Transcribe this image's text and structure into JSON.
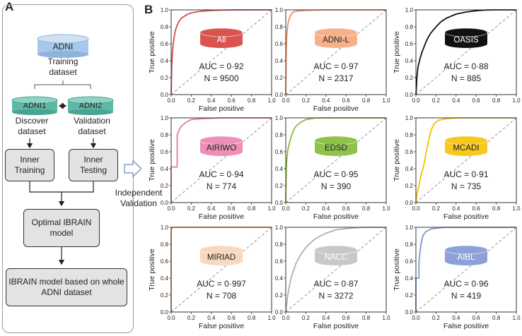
{
  "panel_a_label": "A",
  "panel_b_label": "B",
  "flowchart": {
    "adni": "ADNI",
    "training_dataset": "Training dataset",
    "adni1": "ADNI1",
    "adni2": "ADNI2",
    "discover_dataset": "Discover dataset",
    "validation_dataset": "Validation dataset",
    "inner_training": "Inner Training",
    "inner_testing": "Inner Testing",
    "optimal_model": "Optimal IBRAIN model",
    "final_model": "IBRAIN model based on whole ADNI dataset",
    "independent_validation": "Independent Validation",
    "colors": {
      "db_blue": "#a6c8ea",
      "db_teal": "#5fb8a6"
    }
  },
  "chart_data": [
    {
      "type": "line",
      "name": "All",
      "auc_text": "AUC = 0·92",
      "n_text": "N = 9500",
      "color": "#cf4c4c",
      "label_color": "#d9534f",
      "label_text_color": "#ffffff",
      "xlabel": "False positive",
      "ylabel": "True positive",
      "xlim": [
        0,
        1
      ],
      "ylim": [
        0,
        1
      ],
      "xticks": [
        "0.0",
        "0.2",
        "0.4",
        "0.6",
        "0.8",
        "1.0"
      ],
      "yticks": [
        "0.0",
        "0.2",
        "0.4",
        "0.6",
        "0.8",
        "1.0"
      ],
      "x": [
        0,
        0.005,
        0.01,
        0.02,
        0.04,
        0.06,
        0.08,
        0.1,
        0.15,
        0.2,
        0.3,
        0.4,
        0.5,
        0.6,
        0.8,
        1.0
      ],
      "y": [
        0,
        0.3,
        0.45,
        0.6,
        0.75,
        0.82,
        0.87,
        0.9,
        0.94,
        0.965,
        0.985,
        0.993,
        0.997,
        0.999,
        1.0,
        1.0
      ]
    },
    {
      "type": "line",
      "name": "ADNI-L",
      "auc_text": "AUC = 0·97",
      "n_text": "N = 2317",
      "color": "#f08a5d",
      "label_color": "#f7b08a",
      "label_text_color": "#222222",
      "xlabel": "False positive",
      "ylabel": "",
      "xlim": [
        0,
        1
      ],
      "ylim": [
        0,
        1
      ],
      "xticks": [
        "0.0",
        "0.2",
        "0.4",
        "0.6",
        "0.8",
        "1.0"
      ],
      "yticks": [
        "0.0",
        "0.2",
        "0.4",
        "0.6",
        "0.8",
        "1.0"
      ],
      "x": [
        0,
        0.005,
        0.01,
        0.02,
        0.03,
        0.05,
        0.07,
        0.1,
        0.2,
        0.4,
        1.0
      ],
      "y": [
        0,
        0.5,
        0.7,
        0.82,
        0.88,
        0.94,
        0.97,
        0.985,
        0.995,
        1.0,
        1.0
      ]
    },
    {
      "type": "line",
      "name": "OASIS",
      "auc_text": "AUC = 0·88",
      "n_text": "N = 885",
      "color": "#111111",
      "label_color": "#111111",
      "label_text_color": "#ffffff",
      "xlabel": "",
      "ylabel": "True positive",
      "xlim": [
        0,
        1
      ],
      "ylim": [
        0,
        1
      ],
      "xticks": [
        "0.0",
        "0.2",
        "0.4",
        "0.6",
        "0.8",
        "1.0"
      ],
      "yticks": [
        "0.0",
        "0.2",
        "0.4",
        "0.6",
        "0.8",
        "1.0"
      ],
      "x": [
        0,
        0.005,
        0.01,
        0.02,
        0.04,
        0.06,
        0.08,
        0.1,
        0.12,
        0.15,
        0.2,
        0.25,
        0.3,
        0.4,
        0.5,
        0.6,
        0.7,
        0.8,
        1.0
      ],
      "y": [
        0,
        0.08,
        0.2,
        0.32,
        0.42,
        0.5,
        0.56,
        0.62,
        0.67,
        0.73,
        0.8,
        0.86,
        0.9,
        0.95,
        0.975,
        0.99,
        0.998,
        1.0,
        1.0
      ]
    },
    {
      "type": "line",
      "name": "AIRIWO",
      "auc_text": "AUC = 0·94",
      "n_text": "N = 774",
      "color": "#e07aa8",
      "label_color": "#ee8fb8",
      "label_text_color": "#222222",
      "xlabel": "False positive",
      "ylabel": "True positive",
      "xlim": [
        0,
        1
      ],
      "ylim": [
        0,
        1
      ],
      "xticks": [
        "0.0",
        "0.2",
        "0.4",
        "0.6",
        "0.8",
        "1.0"
      ],
      "yticks": [
        "0.0",
        "0.2",
        "0.4",
        "0.6",
        "0.8",
        "1.0"
      ],
      "x": [
        0,
        0.0,
        0.06,
        0.06,
        0.08,
        0.1,
        0.15,
        0.2,
        0.3,
        0.5,
        1.0
      ],
      "y": [
        0,
        0.42,
        0.42,
        0.8,
        0.86,
        0.9,
        0.95,
        0.98,
        0.99,
        1.0,
        1.0
      ]
    },
    {
      "type": "line",
      "name": "EDSD",
      "auc_text": "AUC = 0·95",
      "n_text": "N = 390",
      "color": "#8cba3c",
      "label_color": "#8fc24a",
      "label_text_color": "#222222",
      "xlabel": "False positive",
      "ylabel": "",
      "xlim": [
        0,
        1
      ],
      "ylim": [
        0,
        1
      ],
      "xticks": [
        "0.0",
        "0.2",
        "0.4",
        "0.6",
        "0.8",
        "1.0"
      ],
      "yticks": [
        "0.0",
        "0.2",
        "0.4",
        "0.6",
        "0.8",
        "1.0"
      ],
      "x": [
        0,
        0.005,
        0.01,
        0.02,
        0.04,
        0.06,
        0.08,
        0.1,
        0.15,
        0.2,
        0.3,
        1.0
      ],
      "y": [
        0,
        0.35,
        0.5,
        0.62,
        0.72,
        0.8,
        0.86,
        0.9,
        0.95,
        0.98,
        1.0,
        1.0
      ]
    },
    {
      "type": "line",
      "name": "MCADI",
      "auc_text": "AUC = 0·91",
      "n_text": "N = 735",
      "color": "#f2c200",
      "label_color": "#f7c81e",
      "label_text_color": "#222222",
      "xlabel": "False positive",
      "ylabel": "True positive",
      "xlim": [
        0,
        1
      ],
      "ylim": [
        0,
        1
      ],
      "xticks": [
        "0.0",
        "0.2",
        "0.4",
        "0.6",
        "0.8",
        "1.0"
      ],
      "yticks": [
        "0.0",
        "0.2",
        "0.4",
        "0.6",
        "0.8",
        "1.0"
      ],
      "x": [
        0,
        0.01,
        0.03,
        0.05,
        0.08,
        0.1,
        0.13,
        0.15,
        0.18,
        0.22,
        0.3,
        0.4,
        1.0
      ],
      "y": [
        0,
        0.1,
        0.2,
        0.32,
        0.45,
        0.58,
        0.75,
        0.85,
        0.93,
        0.97,
        0.99,
        1.0,
        1.0
      ]
    },
    {
      "type": "line",
      "name": "MIRIAD",
      "auc_text": "AUC = 0·997",
      "n_text": "N = 708",
      "color": "#e8965a",
      "label_color": "#f8d8be",
      "label_text_color": "#222222",
      "xlabel": "False positive",
      "ylabel": "True positive",
      "xlim": [
        0,
        1
      ],
      "ylim": [
        0,
        1
      ],
      "xticks": [
        "0.0",
        "0.2",
        "0.4",
        "0.6",
        "0.8",
        "1.0"
      ],
      "yticks": [
        "0.0",
        "0.2",
        "0.4",
        "0.6",
        "0.8",
        "1.0"
      ],
      "x": [
        0,
        0.0,
        0.01,
        0.02,
        0.05,
        1.0
      ],
      "y": [
        0,
        0.97,
        0.99,
        1.0,
        1.0,
        1.0
      ]
    },
    {
      "type": "line",
      "name": "NACC",
      "auc_text": "AUC = 0·87",
      "n_text": "N = 3272",
      "color": "#b0b0b0",
      "label_color": "#c8c8c8",
      "label_text_color": "#ffffff",
      "xlabel": "False positive",
      "ylabel": "",
      "xlim": [
        0,
        1
      ],
      "ylim": [
        0,
        1
      ],
      "xticks": [
        "0.0",
        "0.2",
        "0.4",
        "0.6",
        "0.8",
        "1.0"
      ],
      "yticks": [
        "0.0",
        "0.2",
        "0.4",
        "0.6",
        "0.8",
        "1.0"
      ],
      "x": [
        0,
        0.01,
        0.02,
        0.04,
        0.06,
        0.08,
        0.1,
        0.15,
        0.2,
        0.25,
        0.3,
        0.4,
        0.5,
        0.6,
        0.7,
        0.8,
        1.0
      ],
      "y": [
        0,
        0.1,
        0.2,
        0.33,
        0.43,
        0.5,
        0.57,
        0.68,
        0.76,
        0.82,
        0.87,
        0.93,
        0.97,
        0.985,
        0.995,
        1.0,
        1.0
      ]
    },
    {
      "type": "line",
      "name": "AIBL",
      "auc_text": "AUC = 0·96",
      "n_text": "N = 419",
      "color": "#7f95cf",
      "label_color": "#8da1d8",
      "label_text_color": "#ffffff",
      "xlabel": "False positive",
      "ylabel": "True positive",
      "xlim": [
        0,
        1
      ],
      "ylim": [
        0,
        1
      ],
      "xticks": [
        "0.0",
        "0.2",
        "0.4",
        "0.6",
        "0.8",
        "1.0"
      ],
      "yticks": [
        "0.0",
        "0.2",
        "0.4",
        "0.6",
        "0.8",
        "1.0"
      ],
      "x": [
        0,
        0.0,
        0.03,
        0.03,
        0.05,
        0.07,
        0.1,
        0.15,
        0.2,
        0.3,
        1.0
      ],
      "y": [
        0,
        0.4,
        0.4,
        0.6,
        0.8,
        0.9,
        0.95,
        0.98,
        0.99,
        1.0,
        1.0
      ]
    }
  ]
}
